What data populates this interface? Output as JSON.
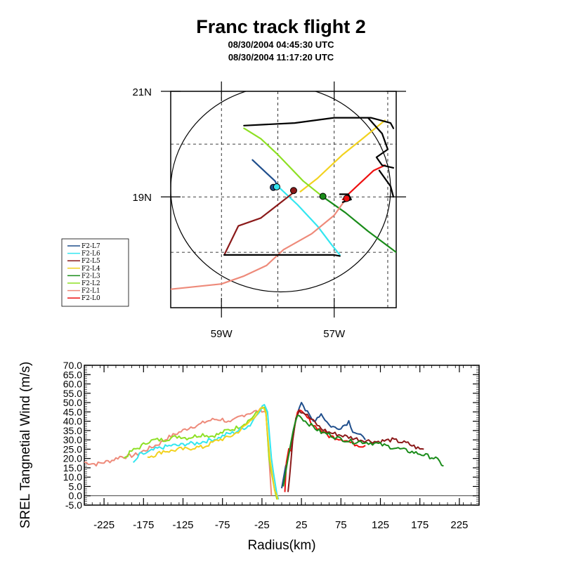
{
  "title": "Franc track flight 2",
  "subtitle_start": "08/30/2004 04:45:30 UTC",
  "subtitle_end": "08/30/2004 11:17:20 UTC",
  "colors": {
    "F2-L7": "#1f4e8c",
    "F2-L6": "#33e6f0",
    "F2-L5": "#8b1a1a",
    "F2-L4": "#f2d21f",
    "F2-L3": "#1a8c1a",
    "F2-L2": "#8ee024",
    "F2-L1": "#ee8a7a",
    "F2-L0": "#ee1010"
  },
  "chart_data": [
    {
      "type": "map",
      "lat_ticks": [
        {
          "value": 21,
          "label": "21N"
        },
        {
          "value": 19,
          "label": "19N"
        }
      ],
      "lon_ticks": [
        {
          "value": -59,
          "label": "59W"
        },
        {
          "value": -57,
          "label": "57W"
        }
      ],
      "lon_range": [
        -59.9,
        -55.9
      ],
      "lat_range": [
        16.9,
        21.0
      ],
      "grid": "dashed",
      "legend_placement": "left",
      "legend": [
        "F2-L7",
        "F2-L6",
        "F2-L5",
        "F2-L4",
        "F2-L3",
        "F2-L2",
        "F2-L1",
        "F2-L0"
      ],
      "circle": {
        "center": [
          -57.95,
          19.15
        ],
        "radius_deg": 1.95
      },
      "tracks": [
        {
          "name": "F2-L7",
          "points": [
            [
              -58.45,
              19.7
            ],
            [
              -58.05,
              19.3
            ],
            [
              -58.0,
              19.2
            ]
          ]
        },
        {
          "name": "F2-L6",
          "points": [
            [
              -58.0,
              19.2
            ],
            [
              -57.65,
              18.85
            ],
            [
              -57.3,
              18.45
            ],
            [
              -57.05,
              18.1
            ],
            [
              -56.9,
              17.9
            ]
          ]
        },
        {
          "name": "F2-L5",
          "points": [
            [
              -57.7,
              19.1
            ],
            [
              -58.0,
              18.85
            ],
            [
              -58.3,
              18.6
            ],
            [
              -58.7,
              18.45
            ],
            [
              -58.95,
              17.9
            ]
          ]
        },
        {
          "name": "F2-L4",
          "points": [
            [
              -57.6,
              19.1
            ],
            [
              -57.3,
              19.35
            ],
            [
              -56.85,
              19.8
            ],
            [
              -56.5,
              20.1
            ],
            [
              -56.1,
              20.45
            ]
          ]
        },
        {
          "name": "F2-L3",
          "points": [
            [
              -57.2,
              19.0
            ],
            [
              -56.8,
              18.7
            ],
            [
              -56.4,
              18.35
            ],
            [
              -55.9,
              17.95
            ]
          ]
        },
        {
          "name": "F2-L2",
          "points": [
            [
              -57.2,
              19.0
            ],
            [
              -57.55,
              19.3
            ],
            [
              -58.0,
              19.8
            ],
            [
              -58.3,
              20.1
            ],
            [
              -58.6,
              20.3
            ]
          ]
        },
        {
          "name": "F2-L1",
          "points": [
            [
              -56.8,
              18.95
            ],
            [
              -57.0,
              18.65
            ],
            [
              -57.4,
              18.3
            ],
            [
              -57.9,
              18.0
            ],
            [
              -58.2,
              17.7
            ],
            [
              -58.6,
              17.5
            ],
            [
              -59.0,
              17.35
            ],
            [
              -59.9,
              17.25
            ]
          ]
        },
        {
          "name": "F2-L0",
          "points": [
            [
              -56.85,
              18.95
            ],
            [
              -56.6,
              19.2
            ],
            [
              -56.3,
              19.5
            ],
            [
              -56.1,
              19.6
            ]
          ]
        },
        {
          "name": "transit",
          "color": "#000000",
          "points": [
            [
              -58.6,
              20.35
            ],
            [
              -57.7,
              20.4
            ],
            [
              -57.0,
              20.5
            ],
            [
              -56.35,
              20.5
            ],
            [
              -56.0,
              20.4
            ],
            [
              -55.95,
              20.3
            ]
          ]
        },
        {
          "name": "transit",
          "color": "#000000",
          "points": [
            [
              -56.4,
              20.5
            ],
            [
              -56.15,
              20.2
            ],
            [
              -56.05,
              19.9
            ],
            [
              -56.25,
              19.75
            ],
            [
              -56.15,
              19.6
            ],
            [
              -55.95,
              19.55
            ]
          ]
        },
        {
          "name": "transit",
          "color": "#000000",
          "points": [
            [
              -56.2,
              19.5
            ],
            [
              -56.0,
              19.2
            ],
            [
              -55.95,
              19.0
            ]
          ]
        },
        {
          "name": "transit",
          "color": "#000000",
          "points": [
            [
              -58.95,
              17.9
            ],
            [
              -58.3,
              17.9
            ],
            [
              -57.6,
              17.9
            ],
            [
              -57.0,
              17.9
            ],
            [
              -56.9,
              17.88
            ]
          ]
        },
        {
          "name": "transit",
          "color": "#000000",
          "points": [
            [
              -56.9,
              19.05
            ],
            [
              -56.75,
              19.05
            ],
            [
              -56.7,
              18.95
            ],
            [
              -56.85,
              18.9
            ]
          ]
        }
      ],
      "markers": [
        {
          "name": "F2-L7",
          "at": [
            -58.08,
            19.18
          ]
        },
        {
          "name": "F2-L6",
          "at": [
            -58.02,
            19.19
          ]
        },
        {
          "name": "F2-L5",
          "at": [
            -57.72,
            19.12
          ]
        },
        {
          "name": "F2-L3",
          "at": [
            -57.2,
            19.01
          ]
        },
        {
          "name": "F2-L0",
          "at": [
            -56.78,
            18.97
          ]
        }
      ]
    },
    {
      "type": "line",
      "xlabel": "Radius(km)",
      "ylabel": "SREL Tangnetial Wind (m/s)",
      "xlim": [
        -250,
        250
      ],
      "ylim": [
        -5,
        70
      ],
      "x_ticks": [
        -225,
        -175,
        -125,
        -75,
        -25,
        25,
        75,
        125,
        175,
        225
      ],
      "y_ticks": [
        "-5.0",
        "0.0",
        "5.0",
        "10.0",
        "15.0",
        "20.0",
        "25.0",
        "30.0",
        "35.0",
        "40.0",
        "45.0",
        "50.0",
        "55.0",
        "60.0",
        "65.0",
        "70.0"
      ],
      "reference_line": 0,
      "series": [
        {
          "name": "F2-L1",
          "points": [
            [
              -250,
              18
            ],
            [
              -235,
              17
            ],
            [
              -225,
              18
            ],
            [
              -215,
              19
            ],
            [
              -205,
              21
            ],
            [
              -195,
              21
            ],
            [
              -185,
              22
            ],
            [
              -175,
              24
            ],
            [
              -165,
              26
            ],
            [
              -155,
              28
            ],
            [
              -145,
              31
            ],
            [
              -135,
              33
            ],
            [
              -125,
              35
            ],
            [
              -115,
              37
            ],
            [
              -105,
              38
            ],
            [
              -95,
              40
            ],
            [
              -85,
              41
            ],
            [
              -75,
              41
            ],
            [
              -65,
              39
            ],
            [
              -55,
              42
            ],
            [
              -45,
              44
            ],
            [
              -35,
              45
            ],
            [
              -25,
              46
            ],
            [
              -20,
              45
            ],
            [
              -16,
              20
            ],
            [
              -13,
              0
            ]
          ]
        },
        {
          "name": "F2-L2",
          "points": [
            [
              -200,
              20
            ],
            [
              -190,
              24
            ],
            [
              -180,
              26
            ],
            [
              -170,
              29
            ],
            [
              -160,
              30
            ],
            [
              -150,
              30
            ],
            [
              -140,
              31
            ],
            [
              -130,
              32
            ],
            [
              -120,
              31
            ],
            [
              -110,
              32
            ],
            [
              -100,
              33
            ],
            [
              -90,
              32
            ],
            [
              -80,
              33
            ],
            [
              -70,
              35
            ],
            [
              -60,
              36
            ],
            [
              -50,
              38
            ],
            [
              -40,
              41
            ],
            [
              -30,
              45
            ],
            [
              -24,
              48
            ],
            [
              -20,
              45
            ],
            [
              -16,
              20
            ],
            [
              -10,
              5
            ],
            [
              -6,
              -2
            ]
          ]
        },
        {
          "name": "F2-L6",
          "points": [
            [
              -188,
              17
            ],
            [
              -180,
              22
            ],
            [
              -170,
              23
            ],
            [
              -160,
              25
            ],
            [
              -150,
              26
            ],
            [
              -140,
              27
            ],
            [
              -130,
              27
            ],
            [
              -120,
              28
            ],
            [
              -110,
              28
            ],
            [
              -100,
              29
            ],
            [
              -90,
              30
            ],
            [
              -80,
              31
            ],
            [
              -70,
              33
            ],
            [
              -60,
              34
            ],
            [
              -50,
              36
            ],
            [
              -40,
              38
            ],
            [
              -30,
              45
            ],
            [
              -22,
              49
            ],
            [
              -18,
              45
            ],
            [
              -13,
              20
            ],
            [
              -8,
              5
            ],
            [
              -4,
              -2
            ]
          ]
        },
        {
          "name": "F2-L4",
          "points": [
            [
              -170,
              21
            ],
            [
              -160,
              22
            ],
            [
              -150,
              24
            ],
            [
              -140,
              24
            ],
            [
              -130,
              25
            ],
            [
              -120,
              25
            ],
            [
              -110,
              26
            ],
            [
              -100,
              26
            ],
            [
              -90,
              28
            ],
            [
              -80,
              30
            ],
            [
              -70,
              31
            ],
            [
              -60,
              33
            ],
            [
              -50,
              36
            ],
            [
              -40,
              40
            ],
            [
              -30,
              45
            ],
            [
              -24,
              47
            ],
            [
              -20,
              44
            ],
            [
              -15,
              20
            ],
            [
              -9,
              3
            ],
            [
              -5,
              -2
            ]
          ]
        },
        {
          "name": "F2-L7",
          "points": [
            [
              0,
              4
            ],
            [
              5,
              16
            ],
            [
              10,
              24
            ],
            [
              15,
              35
            ],
            [
              20,
              45
            ],
            [
              25,
              51
            ],
            [
              30,
              46
            ],
            [
              40,
              40
            ],
            [
              50,
              44
            ],
            [
              60,
              38
            ],
            [
              70,
              36
            ],
            [
              80,
              38
            ],
            [
              85,
              40
            ],
            [
              90,
              35
            ],
            [
              100,
              32
            ],
            [
              106,
              30
            ]
          ]
        },
        {
          "name": "F2-L0",
          "points": [
            [
              4,
              2
            ],
            [
              6,
              18
            ],
            [
              9,
              26
            ],
            [
              12,
              24
            ],
            [
              16,
              36
            ],
            [
              20,
              46
            ],
            [
              30,
              43
            ],
            [
              40,
              38
            ],
            [
              50,
              35
            ],
            [
              60,
              32
            ],
            [
              70,
              31
            ],
            [
              80,
              30
            ],
            [
              90,
              28
            ],
            [
              100,
              27
            ],
            [
              106,
              27
            ]
          ]
        },
        {
          "name": "F2-L5",
          "points": [
            [
              8,
              2
            ],
            [
              10,
              10
            ],
            [
              14,
              30
            ],
            [
              18,
              42
            ],
            [
              22,
              46
            ],
            [
              30,
              44
            ],
            [
              40,
              40
            ],
            [
              50,
              36
            ],
            [
              60,
              34
            ],
            [
              70,
              33
            ],
            [
              80,
              32
            ],
            [
              90,
              31
            ],
            [
              100,
              30
            ],
            [
              120,
              29
            ],
            [
              140,
              30
            ],
            [
              160,
              28
            ],
            [
              175,
              25
            ],
            [
              180,
              25
            ]
          ]
        },
        {
          "name": "F2-L3",
          "points": [
            [
              2,
              5
            ],
            [
              8,
              20
            ],
            [
              14,
              34
            ],
            [
              20,
              44
            ],
            [
              30,
              40
            ],
            [
              40,
              37
            ],
            [
              50,
              34
            ],
            [
              60,
              33
            ],
            [
              70,
              31
            ],
            [
              80,
              30
            ],
            [
              90,
              29
            ],
            [
              100,
              29
            ],
            [
              120,
              28
            ],
            [
              140,
              26
            ],
            [
              160,
              24
            ],
            [
              180,
              22
            ],
            [
              195,
              20
            ],
            [
              205,
              16
            ]
          ]
        }
      ]
    }
  ]
}
